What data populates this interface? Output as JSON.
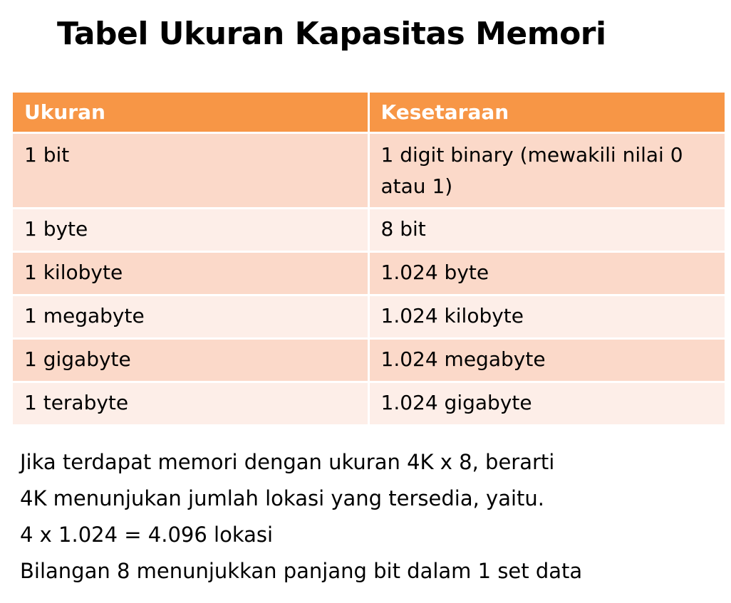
{
  "title": "Tabel Ukuran Kapasitas Memori",
  "table": {
    "headers": [
      "Ukuran",
      "Kesetaraan"
    ],
    "rows": [
      [
        "1 bit",
        "1 digit binary (mewakili nilai 0 atau 1)"
      ],
      [
        "1 byte",
        "8 bit"
      ],
      [
        "1 kilobyte",
        "1.024 byte"
      ],
      [
        "1 megabyte",
        "1.024 kilobyte"
      ],
      [
        "1 gigabyte",
        "1.024 megabyte"
      ],
      [
        "1 terabyte",
        "1.024 gigabyte"
      ]
    ]
  },
  "notes": [
    "Jika terdapat memori dengan ukuran 4K x 8, berarti",
    "4K menunjukan jumlah lokasi yang tersedia, yaitu.",
    "4 x 1.024 = 4.096 lokasi",
    "Bilangan 8 menunjukkan panjang bit dalam 1 set data"
  ],
  "colors": {
    "header_bg": "#f79646",
    "row_odd_bg": "#fbd9c9",
    "row_even_bg": "#fdeee8"
  }
}
